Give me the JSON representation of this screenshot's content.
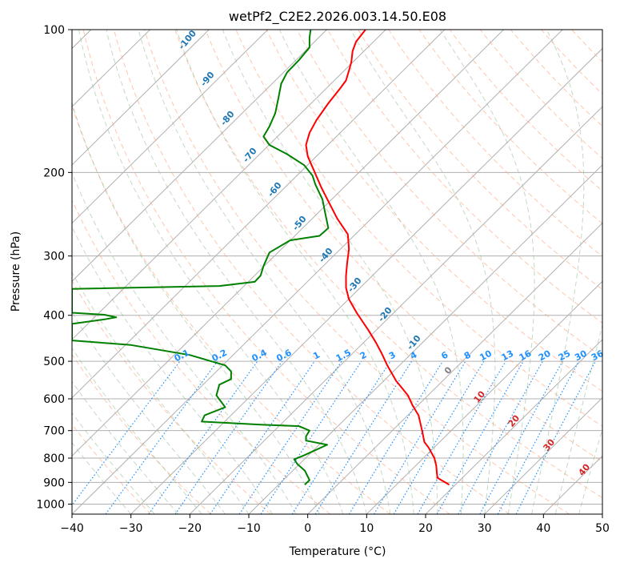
{
  "chart_data": {
    "type": "line",
    "title": "wetPf2_C2E2.2026.003.14.50.E08",
    "xlabel": "Temperature (°C)",
    "ylabel": "Pressure (hPa)",
    "xlim": [
      -40,
      50
    ],
    "ylim": [
      1050,
      100
    ],
    "y_scale": "log",
    "grid": true,
    "x_ticks": [
      "−40",
      "−30",
      "−20",
      "−10",
      "0",
      "10",
      "20",
      "30",
      "40",
      "50"
    ],
    "y_ticks": [
      {
        "value": 100,
        "label": "100"
      },
      {
        "value": 200,
        "label": "200"
      },
      {
        "value": 300,
        "label": "300"
      },
      {
        "value": 400,
        "label": "400"
      },
      {
        "value": 500,
        "label": "500"
      },
      {
        "value": 600,
        "label": "600"
      },
      {
        "value": 700,
        "label": "700"
      },
      {
        "value": 800,
        "label": "800"
      },
      {
        "value": 900,
        "label": "900"
      },
      {
        "value": 1000,
        "label": "1000"
      }
    ],
    "series": [
      {
        "role": "temperature",
        "color": "#ff0000",
        "points": [
          [
            24,
            910
          ],
          [
            22,
            880
          ],
          [
            21.8,
            830
          ],
          [
            21.5,
            800
          ],
          [
            20.5,
            760
          ],
          [
            19.8,
            740
          ],
          [
            19.4,
            700
          ],
          [
            18.8,
            650
          ],
          [
            17.8,
            620
          ],
          [
            17.0,
            590
          ],
          [
            15.0,
            550
          ],
          [
            13.5,
            510
          ],
          [
            12.5,
            480
          ],
          [
            11.5,
            455
          ],
          [
            10.3,
            430
          ],
          [
            8.3,
            395
          ],
          [
            7.0,
            370
          ],
          [
            6.5,
            350
          ],
          [
            6.5,
            330
          ],
          [
            6.7,
            310
          ],
          [
            7.0,
            290
          ],
          [
            6.8,
            270
          ],
          [
            5.0,
            250
          ],
          [
            3.5,
            230
          ],
          [
            2.3,
            215
          ],
          [
            1.2,
            200
          ],
          [
            0,
            185
          ],
          [
            -0.3,
            175
          ],
          [
            0.3,
            165
          ],
          [
            1.5,
            155
          ],
          [
            3.5,
            143
          ],
          [
            5.5,
            133
          ],
          [
            6.5,
            128
          ],
          [
            7.0,
            122
          ],
          [
            7.4,
            117
          ],
          [
            7.6,
            111
          ],
          [
            8.2,
            106
          ],
          [
            9.8,
            100
          ]
        ]
      },
      {
        "role": "dewpoint",
        "color": "#008000",
        "points": [
          [
            -0.5,
            910
          ],
          [
            0.3,
            890
          ],
          [
            -0.5,
            850
          ],
          [
            -1.7,
            825
          ],
          [
            -2.3,
            805
          ],
          [
            -0.7,
            790
          ],
          [
            3.3,
            750
          ],
          [
            -0.3,
            735
          ],
          [
            -0.3,
            720
          ],
          [
            0.3,
            700
          ],
          [
            -1.5,
            685
          ],
          [
            -8,
            680
          ],
          [
            -18,
            670
          ],
          [
            -17.5,
            650
          ],
          [
            -14,
            625
          ],
          [
            -15.5,
            590
          ],
          [
            -15,
            560
          ],
          [
            -13,
            545
          ],
          [
            -13,
            525
          ],
          [
            -14,
            510
          ],
          [
            -20,
            485
          ],
          [
            -30,
            462
          ],
          [
            -40,
            452
          ],
          [
            -40,
            417
          ],
          [
            -34.5,
            408
          ],
          [
            -32.5,
            404
          ],
          [
            -34.5,
            399
          ],
          [
            -40,
            395
          ],
          [
            -40,
            352
          ],
          [
            -15,
            347
          ],
          [
            -9,
            340
          ],
          [
            -8,
            330
          ],
          [
            -7.5,
            315
          ],
          [
            -6.5,
            295
          ],
          [
            -3,
            278
          ],
          [
            2,
            272
          ],
          [
            3.5,
            262
          ],
          [
            3.0,
            245
          ],
          [
            2.5,
            228
          ],
          [
            1.3,
            212
          ],
          [
            0.8,
            203
          ],
          [
            -0.6,
            193
          ],
          [
            -3.5,
            183
          ],
          [
            -6.5,
            175
          ],
          [
            -7.5,
            168
          ],
          [
            -6.5,
            160
          ],
          [
            -5.5,
            150
          ],
          [
            -5.0,
            140
          ],
          [
            -4.5,
            130
          ],
          [
            -3.5,
            123
          ],
          [
            -1.5,
            116
          ],
          [
            0.3,
            109
          ],
          [
            0.3,
            104
          ],
          [
            0.5,
            100
          ]
        ]
      }
    ],
    "dry_adiabat_labels": [
      "-100",
      "-90",
      "-80",
      "-70",
      "-60",
      "-50",
      "-40",
      "-30",
      "-20",
      "-10"
    ],
    "moist_adiabat_labels": [
      "0",
      "10",
      "20",
      "30",
      "40"
    ],
    "mixing_ratio_labels": [
      "0.1",
      "0.2",
      "0.4",
      "0.6",
      "1",
      "1.5",
      "2",
      "3",
      "4",
      "6",
      "8",
      "10",
      "13",
      "16",
      "20",
      "25",
      "30",
      "36"
    ],
    "colors": {
      "isotherm": "#b0b0b0",
      "dry_adiabat": "#ffa07a",
      "moist_adiabat": "#8fbc8f",
      "mixing_ratio": "#1e90ff",
      "dry_label": "#1f77b4",
      "moist_label": "#d62728",
      "mixing_label": "#1e90ff",
      "zero_label": "#808080"
    }
  }
}
